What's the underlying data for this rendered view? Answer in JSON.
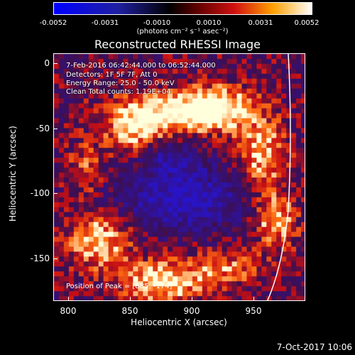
{
  "colorbar": {
    "tick_labels": [
      "-0.0052",
      "-0.0031",
      "-0.0010",
      "0.0010",
      "0.0031",
      "0.0052"
    ],
    "units": "(photons cm⁻² s⁻¹ asec⁻²)"
  },
  "title": "Reconstructed RHESSI Image",
  "info": {
    "time_range": "7-Feb-2016 06:42:44.000 to 06:52:44.000",
    "detectors": "Detectors: 1F 5F 7F, Att 0",
    "energy": "Energy Range: 25.0 - 50.0 keV",
    "clean": "Clean    Total counts: 1.19E+04"
  },
  "peak": "Position of Peak = [885, -174]",
  "axes": {
    "xlabel": "Heliocentric X (arcsec)",
    "ylabel": "Heliocentric Y (arcsec)",
    "xticks": [
      "800",
      "850",
      "900",
      "950"
    ],
    "yticks": [
      "0",
      "-50",
      "-100",
      "-150"
    ]
  },
  "datestamp": "7-Oct-2017 10:06"
}
